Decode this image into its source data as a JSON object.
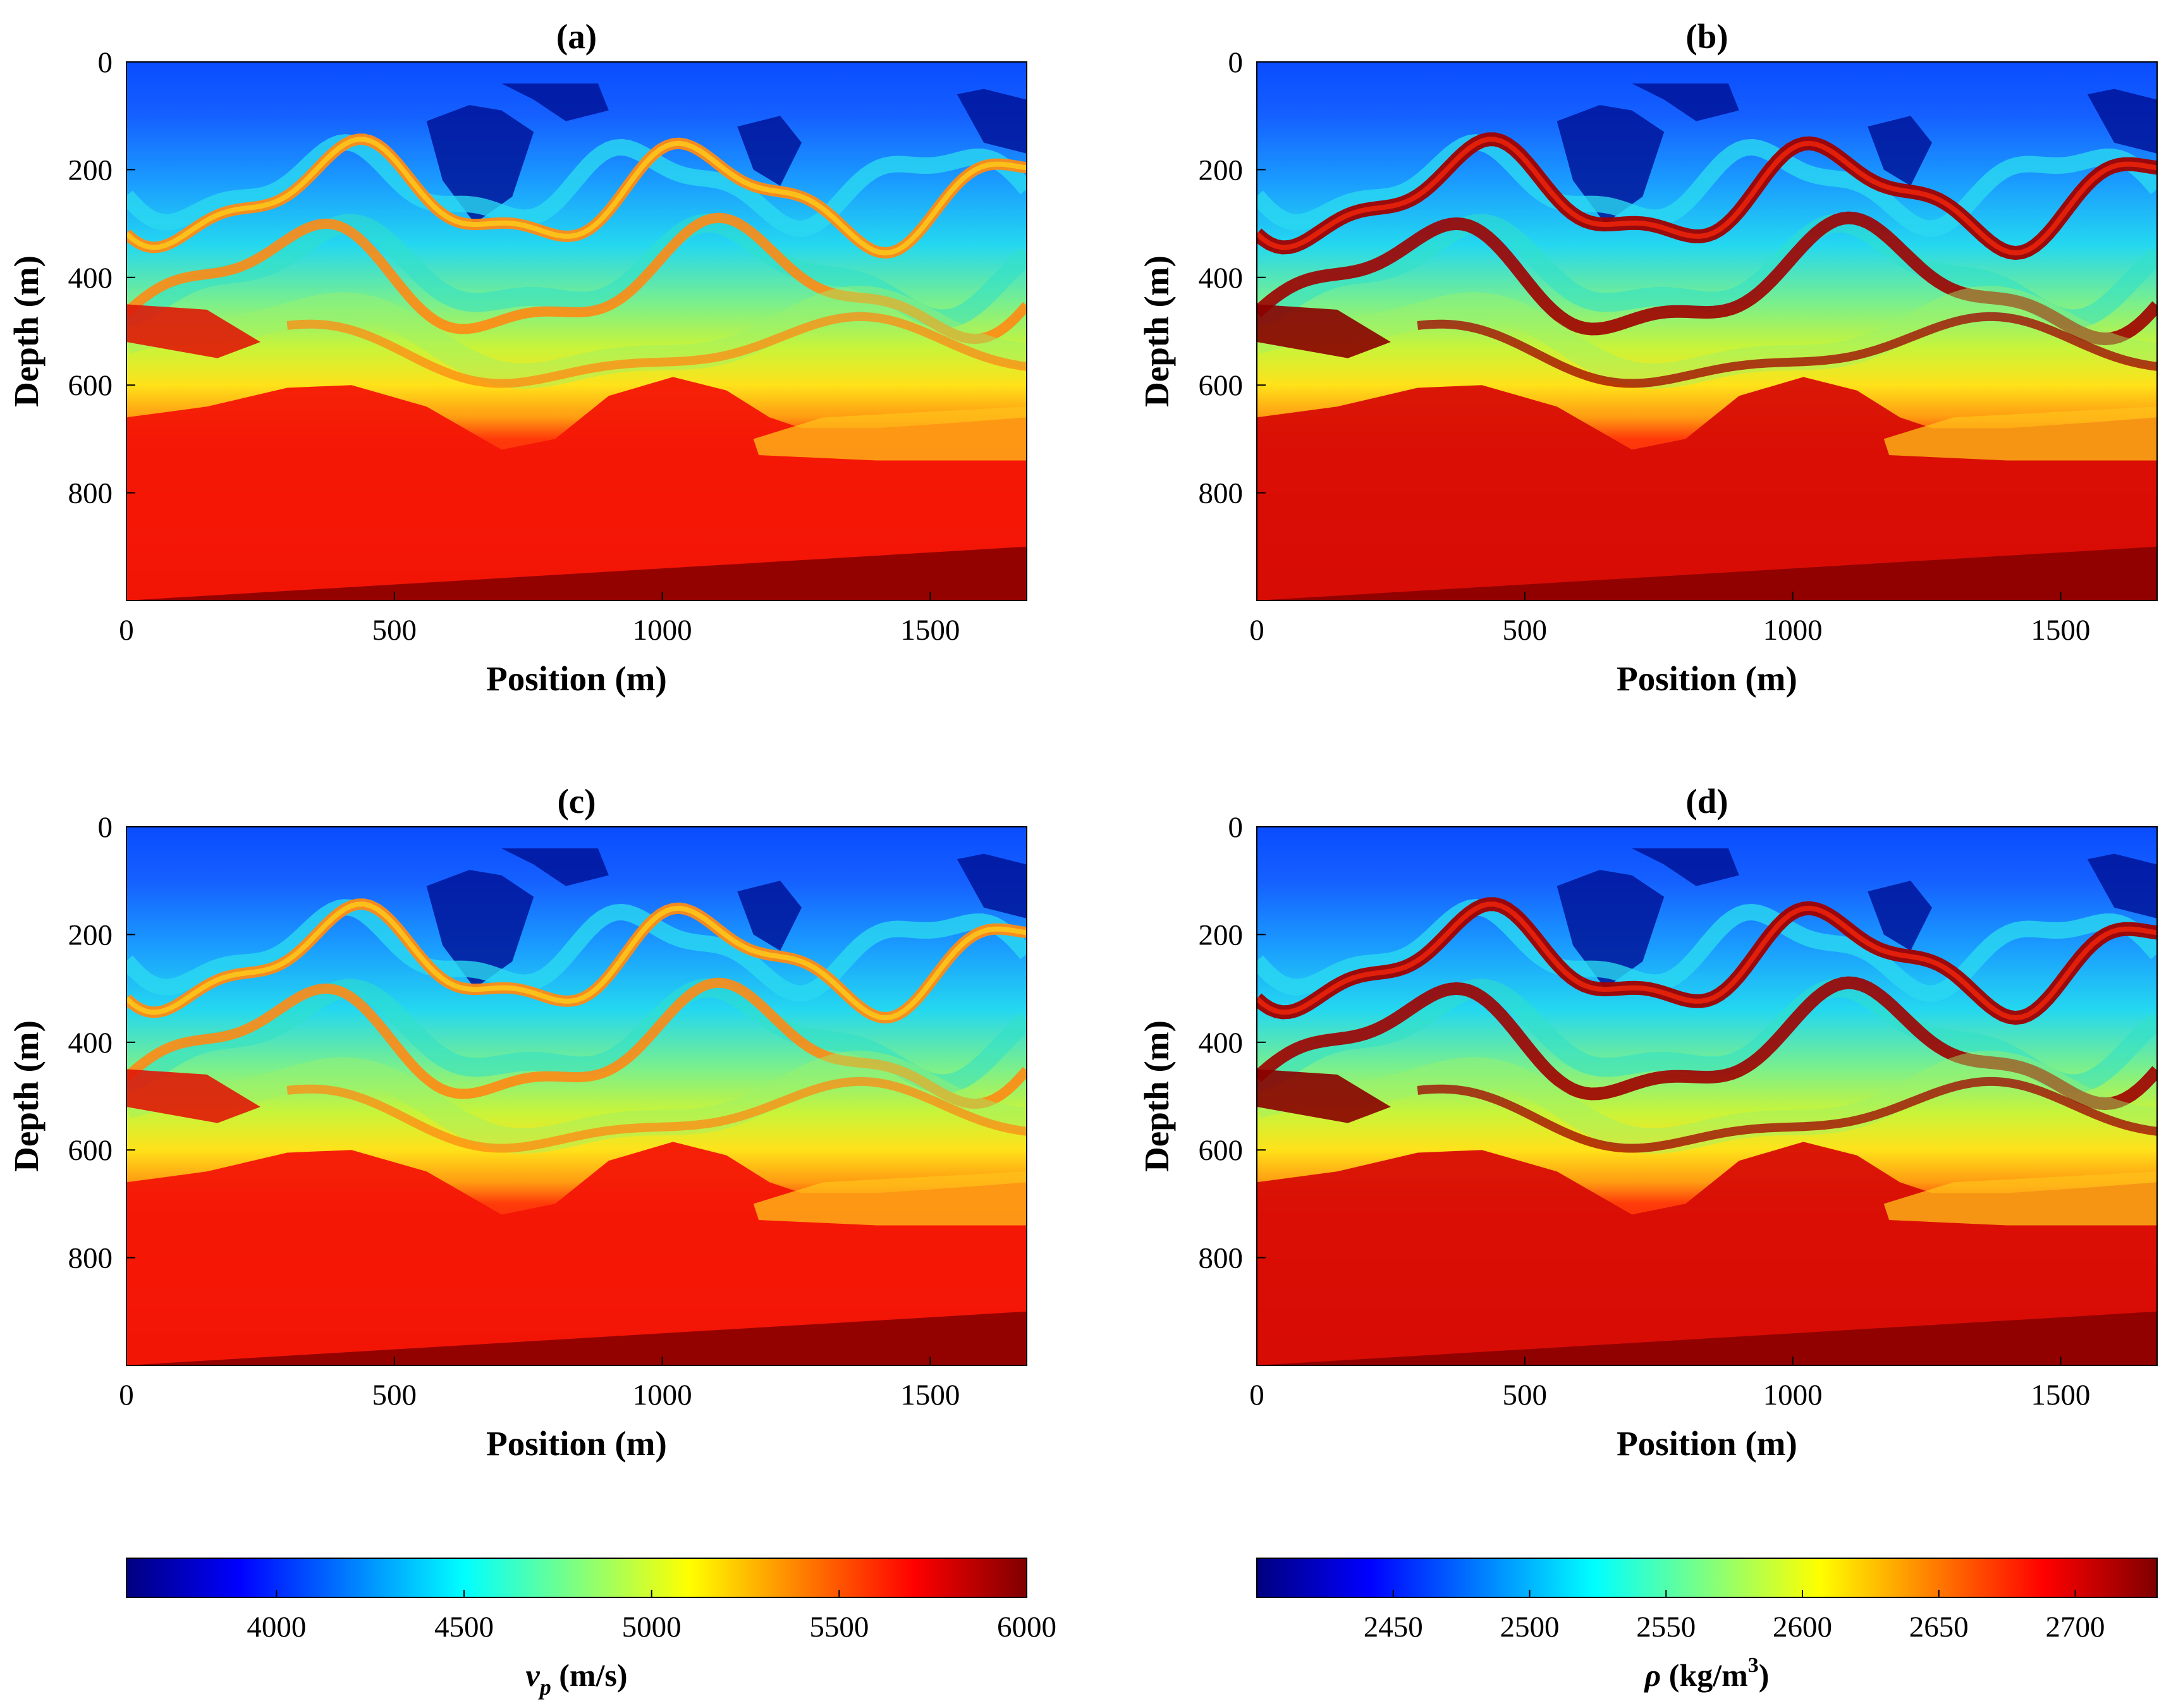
{
  "chart_data": [
    {
      "type": "heatmap",
      "title": "(a)",
      "xlabel": "Position (m)",
      "ylabel": "Depth (m)",
      "xlim": [
        0,
        1680
      ],
      "ylim": [
        0,
        1000
      ],
      "xticks": [
        0,
        500,
        1000,
        1500
      ],
      "yticks": [
        0,
        200,
        400,
        600,
        800
      ],
      "quantity": "vp",
      "variant": "true"
    },
    {
      "type": "heatmap",
      "title": "(b)",
      "xlabel": "Position (m)",
      "ylabel": "Depth (m)",
      "xlim": [
        0,
        1680
      ],
      "ylim": [
        0,
        1000
      ],
      "xticks": [
        0,
        500,
        1000,
        1500
      ],
      "yticks": [
        0,
        200,
        400,
        600,
        800
      ],
      "quantity": "rho",
      "variant": "true"
    },
    {
      "type": "heatmap",
      "title": "(c)",
      "xlabel": "Position (m)",
      "ylabel": "Depth (m)",
      "xlim": [
        0,
        1680
      ],
      "ylim": [
        0,
        1000
      ],
      "xticks": [
        0,
        500,
        1000,
        1500
      ],
      "yticks": [
        0,
        200,
        400,
        600,
        800
      ],
      "quantity": "vp",
      "variant": "inverted"
    },
    {
      "type": "heatmap",
      "title": "(d)",
      "xlabel": "Position (m)",
      "ylabel": "Depth (m)",
      "xlim": [
        0,
        1680
      ],
      "ylim": [
        0,
        1000
      ],
      "xticks": [
        0,
        500,
        1000,
        1500
      ],
      "yticks": [
        0,
        200,
        400,
        600,
        800
      ],
      "quantity": "rho",
      "variant": "inverted"
    }
  ],
  "colorbars": [
    {
      "label_main": "v",
      "label_sub": "p",
      "label_unit": " (m/s)",
      "range": [
        3600,
        6000
      ],
      "ticks": [
        4000,
        4500,
        5000,
        5500,
        6000
      ],
      "colormap": "jet"
    },
    {
      "label_main": "ρ",
      "label_unit": " (kg/m",
      "label_sup": "3",
      "label_close": ")",
      "range": [
        2400,
        2730
      ],
      "ticks": [
        2450,
        2500,
        2550,
        2600,
        2650,
        2700
      ],
      "colormap": "jet"
    }
  ],
  "colors": {
    "jet_stops": [
      "#00007f",
      "#0000ff",
      "#007fff",
      "#00ffff",
      "#7fff7f",
      "#ffff00",
      "#ff7f00",
      "#ff0000",
      "#7f0000"
    ]
  }
}
